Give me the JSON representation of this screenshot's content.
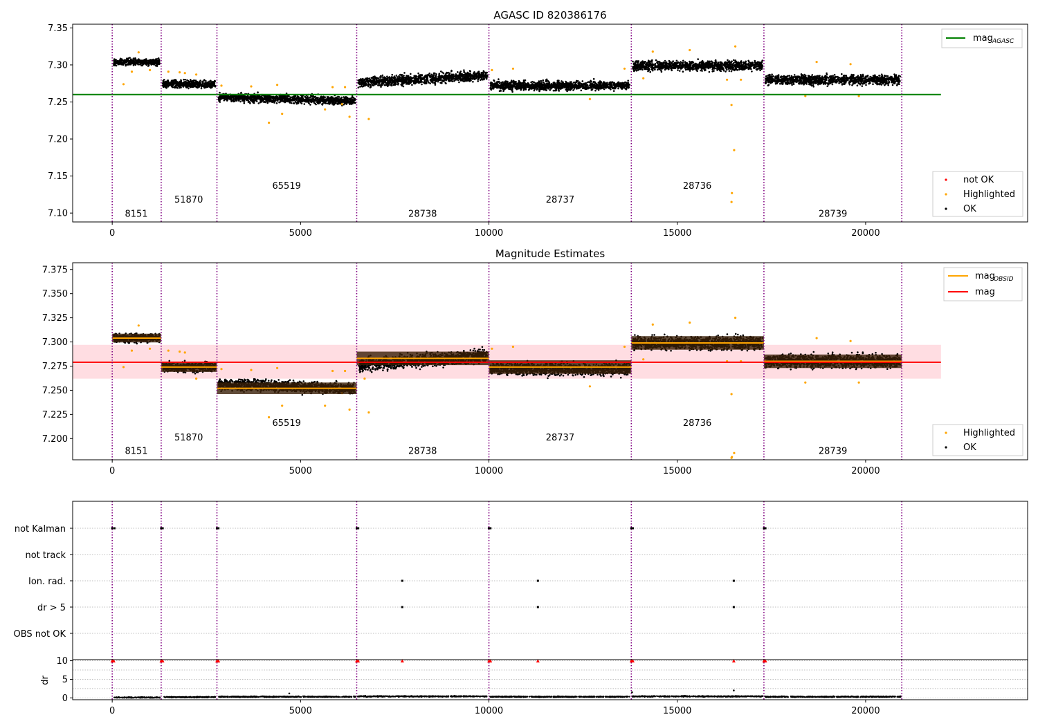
{
  "chart_data": [
    {
      "type": "scatter",
      "title": "AGASC ID 820386176",
      "xlim": [
        -1050,
        24300
      ],
      "ylim": [
        7.088,
        7.355
      ],
      "xticks": [
        0,
        5000,
        10000,
        15000,
        20000
      ],
      "yticks": [
        7.1,
        7.15,
        7.2,
        7.25,
        7.3,
        7.35
      ],
      "ytick_labels": [
        "7.10",
        "7.15",
        "7.20",
        "7.25",
        "7.30",
        "7.35"
      ],
      "grid": false,
      "obs_boundaries": [
        0,
        1300,
        2780,
        6490,
        10000,
        13780,
        17300,
        20960
      ],
      "obs_labels": [
        {
          "text": "8151",
          "x": 640,
          "y": 7.095
        },
        {
          "text": "51870",
          "x": 2030,
          "y": 7.114
        },
        {
          "text": "65519",
          "x": 4630,
          "y": 7.133
        },
        {
          "text": "28738",
          "x": 8240,
          "y": 7.095
        },
        {
          "text": "28737",
          "x": 11890,
          "y": 7.114
        },
        {
          "text": "28736",
          "x": 15530,
          "y": 7.133
        },
        {
          "text": "28739",
          "x": 19130,
          "y": 7.095
        }
      ],
      "series": [
        {
          "name": "not OK",
          "color": "#ff0000",
          "points": []
        },
        {
          "name": "Highlighted",
          "color": "#ffa500",
          "points": [
            [
              300,
              7.274
            ],
            [
              520,
              7.291
            ],
            [
              700,
              7.317
            ],
            [
              1000,
              7.293
            ],
            [
              1490,
              7.291
            ],
            [
              1790,
              7.29
            ],
            [
              1930,
              7.289
            ],
            [
              2230,
              7.287
            ],
            [
              2900,
              7.272
            ],
            [
              3690,
              7.271
            ],
            [
              4160,
              7.222
            ],
            [
              4380,
              7.273
            ],
            [
              4510,
              7.234
            ],
            [
              5650,
              7.24
            ],
            [
              5850,
              7.27
            ],
            [
              6100,
              7.247
            ],
            [
              6180,
              7.27
            ],
            [
              6300,
              7.23
            ],
            [
              6810,
              7.227
            ],
            [
              10080,
              7.293
            ],
            [
              10640,
              7.295
            ],
            [
              12680,
              7.254
            ],
            [
              13600,
              7.295
            ],
            [
              14100,
              7.282
            ],
            [
              14350,
              7.318
            ],
            [
              15330,
              7.32
            ],
            [
              16320,
              7.28
            ],
            [
              16440,
              7.246
            ],
            [
              16510,
              7.185
            ],
            [
              16450,
              7.127
            ],
            [
              16440,
              7.115
            ],
            [
              16540,
              7.325
            ],
            [
              16690,
              7.28
            ],
            [
              18400,
              7.258
            ],
            [
              18700,
              7.304
            ],
            [
              19600,
              7.301
            ],
            [
              19820,
              7.258
            ]
          ]
        },
        {
          "name": "OK",
          "color": "#000000",
          "segments": [
            {
              "x0": 0,
              "x1": 1300,
              "center": 7.304,
              "spread": 0.008
            },
            {
              "x0": 1300,
              "x1": 2780,
              "center": 7.274,
              "spread": 0.009
            },
            {
              "x0": 2780,
              "x1": 6490,
              "center": 7.254,
              "spread": 0.01,
              "slope": -0.005
            },
            {
              "x0": 6490,
              "x1": 10000,
              "center": 7.281,
              "spread": 0.012,
              "slope": 0.01
            },
            {
              "x0": 10000,
              "x1": 13780,
              "center": 7.272,
              "spread": 0.011
            },
            {
              "x0": 13780,
              "x1": 17300,
              "center": 7.299,
              "spread": 0.012
            },
            {
              "x0": 17300,
              "x1": 20960,
              "center": 7.28,
              "spread": 0.012
            }
          ]
        }
      ],
      "reference_lines": [
        {
          "name": "magAGASC",
          "label_main": "mag",
          "label_sub": "AGASC",
          "value": 7.26,
          "x0": -1050,
          "x1": 22000,
          "color": "#008000"
        }
      ],
      "legends": [
        {
          "entries": [
            "magAGASC"
          ],
          "location": "upper-right"
        },
        {
          "entries": [
            "not OK",
            "Highlighted",
            "OK"
          ],
          "location": "lower-right"
        }
      ]
    },
    {
      "type": "scatter",
      "title": "Magnitude Estimates",
      "xlim": [
        -1050,
        24300
      ],
      "ylim": [
        7.178,
        7.382
      ],
      "xticks": [
        0,
        5000,
        10000,
        15000,
        20000
      ],
      "yticks": [
        7.2,
        7.225,
        7.25,
        7.275,
        7.3,
        7.325,
        7.35,
        7.375
      ],
      "ytick_labels": [
        "7.200",
        "7.225",
        "7.250",
        "7.275",
        "7.300",
        "7.325",
        "7.350",
        "7.375"
      ],
      "grid": false,
      "obs_boundaries": [
        0,
        1300,
        2780,
        6490,
        10000,
        13780,
        17300,
        20960
      ],
      "obs_labels": [
        {
          "text": "8151",
          "x": 640,
          "y": 7.184
        },
        {
          "text": "51870",
          "x": 2030,
          "y": 7.198
        },
        {
          "text": "65519",
          "x": 4630,
          "y": 7.213
        },
        {
          "text": "28738",
          "x": 8240,
          "y": 7.184
        },
        {
          "text": "28737",
          "x": 11890,
          "y": 7.198
        },
        {
          "text": "28736",
          "x": 15530,
          "y": 7.213
        },
        {
          "text": "28739",
          "x": 19130,
          "y": 7.184
        }
      ],
      "series": [
        {
          "name": "Highlighted",
          "color": "#ffa500",
          "points": [
            [
              300,
              7.274
            ],
            [
              520,
              7.291
            ],
            [
              700,
              7.317
            ],
            [
              1000,
              7.293
            ],
            [
              1490,
              7.291
            ],
            [
              1790,
              7.29
            ],
            [
              1930,
              7.289
            ],
            [
              2230,
              7.262
            ],
            [
              2900,
              7.272
            ],
            [
              3690,
              7.271
            ],
            [
              4160,
              7.222
            ],
            [
              4380,
              7.273
            ],
            [
              4510,
              7.234
            ],
            [
              5650,
              7.234
            ],
            [
              5850,
              7.27
            ],
            [
              6100,
              7.247
            ],
            [
              6180,
              7.27
            ],
            [
              6300,
              7.23
            ],
            [
              6810,
              7.227
            ],
            [
              6700,
              7.262
            ],
            [
              10080,
              7.293
            ],
            [
              10640,
              7.295
            ],
            [
              12680,
              7.254
            ],
            [
              13600,
              7.295
            ],
            [
              14100,
              7.282
            ],
            [
              14350,
              7.318
            ],
            [
              15330,
              7.32
            ],
            [
              16320,
              7.28
            ],
            [
              16440,
              7.246
            ],
            [
              16510,
              7.185
            ],
            [
              16450,
              7.181
            ],
            [
              16440,
              7.18
            ],
            [
              16540,
              7.325
            ],
            [
              16690,
              7.28
            ],
            [
              18400,
              7.258
            ],
            [
              18700,
              7.304
            ],
            [
              19600,
              7.301
            ],
            [
              19820,
              7.258
            ]
          ]
        },
        {
          "name": "OK",
          "color": "#000000",
          "segments": [
            {
              "x0": 0,
              "x1": 1300,
              "center": 7.304,
              "spread": 0.008
            },
            {
              "x0": 1300,
              "x1": 2780,
              "center": 7.274,
              "spread": 0.009
            },
            {
              "x0": 2780,
              "x1": 6490,
              "center": 7.254,
              "spread": 0.01,
              "slope": -0.005
            },
            {
              "x0": 6490,
              "x1": 10000,
              "center": 7.281,
              "spread": 0.012,
              "slope": 0.01
            },
            {
              "x0": 10000,
              "x1": 13780,
              "center": 7.272,
              "spread": 0.011
            },
            {
              "x0": 13780,
              "x1": 17300,
              "center": 7.299,
              "spread": 0.012
            },
            {
              "x0": 17300,
              "x1": 20960,
              "center": 7.28,
              "spread": 0.012
            }
          ]
        }
      ],
      "obsid_means": [
        {
          "x0": 0,
          "x1": 1300,
          "value": 7.304,
          "band": 0.0045
        },
        {
          "x0": 1300,
          "x1": 2780,
          "value": 7.274,
          "band": 0.005
        },
        {
          "x0": 2780,
          "x1": 6490,
          "value": 7.252,
          "band": 0.006
        },
        {
          "x0": 6490,
          "x1": 10000,
          "value": 7.283,
          "band": 0.007
        },
        {
          "x0": 10000,
          "x1": 13780,
          "value": 7.274,
          "band": 0.007
        },
        {
          "x0": 13780,
          "x1": 17300,
          "value": 7.299,
          "band": 0.007
        },
        {
          "x0": 17300,
          "x1": 20960,
          "value": 7.28,
          "band": 0.007
        }
      ],
      "reference_lines": [
        {
          "name": "mag",
          "value": 7.279,
          "x0": -1050,
          "x1": 22000,
          "color": "#ff0000",
          "band": [
            7.262,
            7.297
          ],
          "band_color": "#ffdde2"
        }
      ],
      "legends": [
        {
          "entries": [
            "magOBSID",
            "mag"
          ],
          "location": "upper-right",
          "magOBSID_main": "mag",
          "magOBSID_sub": "OBSID",
          "magOBSID_color": "#ffa500"
        },
        {
          "entries": [
            "Highlighted",
            "OK"
          ],
          "location": "lower-right"
        }
      ]
    },
    {
      "type": "scatter",
      "title": "",
      "subtype": "flags",
      "xlim": [
        -1050,
        24300
      ],
      "flag_categories": [
        "not Kalman",
        "not track",
        "Ion. rad.",
        "dr > 5",
        "OBS not OK"
      ],
      "flag_points": {
        "not Kalman": [
          0,
          60,
          1300,
          1340,
          2780,
          2820,
          6490,
          6530,
          10000,
          10040,
          13780,
          13820,
          17300,
          17340
        ],
        "not track": [],
        "Ion. rad.": [
          7700,
          11300,
          16500
        ],
        "dr > 5": [
          7700,
          11300,
          16500
        ],
        "OBS not OK": []
      },
      "obs_boundaries": [
        0,
        1300,
        2780,
        6490,
        10000,
        13780,
        17300,
        20960
      ]
    },
    {
      "type": "scatter",
      "subtype": "dr",
      "ylabel": "dr",
      "xlim": [
        -1050,
        24300
      ],
      "ylim": [
        -0.5,
        10.3
      ],
      "xticks": [
        0,
        5000,
        10000,
        15000,
        20000
      ],
      "yticks": [
        0,
        5,
        10
      ],
      "ytick_labels": [
        "0",
        "5",
        "10"
      ],
      "clipped_markers": [
        0,
        40,
        1300,
        1340,
        2780,
        2820,
        6490,
        6530,
        7700,
        10000,
        10040,
        11300,
        13780,
        13820,
        16500,
        17300,
        17340
      ],
      "clip_value": 10,
      "clip_color": "#ff0000",
      "outliers": [
        [
          4700,
          1.2
        ],
        [
          13800,
          1.5
        ],
        [
          16500,
          2.0
        ]
      ],
      "noise_segments": [
        {
          "x0": 0,
          "x1": 1300,
          "level": 0.1
        },
        {
          "x0": 1300,
          "x1": 2780,
          "level": 0.2
        },
        {
          "x0": 2780,
          "x1": 6490,
          "level": 0.3
        },
        {
          "x0": 6490,
          "x1": 10000,
          "level": 0.4
        },
        {
          "x0": 10000,
          "x1": 13780,
          "level": 0.3
        },
        {
          "x0": 13780,
          "x1": 17300,
          "level": 0.4
        },
        {
          "x0": 17300,
          "x1": 20960,
          "level": 0.3
        }
      ]
    }
  ]
}
